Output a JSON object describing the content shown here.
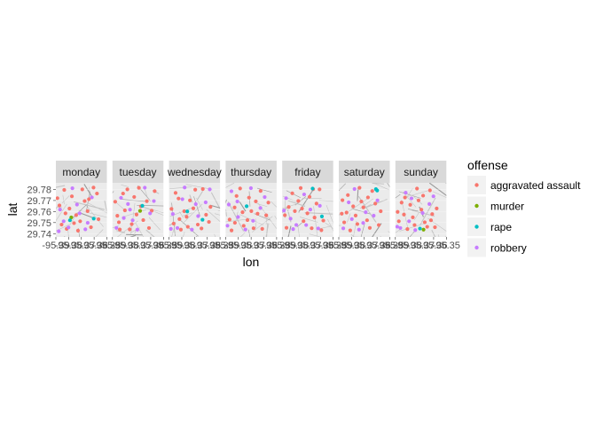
{
  "chart_data": {
    "type": "scatter",
    "facet_by": "day",
    "panels": [
      "monday",
      "tuesday",
      "wednesday",
      "thursday",
      "friday",
      "saturday",
      "sunday"
    ],
    "xlabel": "lon",
    "ylabel": "lat",
    "xlim": [
      -95.39,
      -95.34
    ],
    "ylim": [
      29.737,
      29.786
    ],
    "x_tick_labels": [
      "-95.39",
      "-95.38",
      "-95.37",
      "-95.36",
      "-95.35"
    ],
    "y_ticks": [
      29.74,
      29.75,
      29.76,
      29.77,
      29.78
    ],
    "y_tick_labels": [
      "29.74",
      "29.75",
      "29.76",
      "29.77",
      "29.78"
    ],
    "legend": {
      "title": "offense",
      "position": "right",
      "entries": [
        "aggravated assault",
        "murder",
        "rape",
        "robbery"
      ]
    },
    "colors": {
      "aggravated assault": "#F8766D",
      "murder": "#7CAE00",
      "rape": "#00BFC4",
      "robbery": "#C77CFF",
      "panel_background": "#EBEBEB",
      "strip_background": "#D9D9D9"
    },
    "grid": true,
    "basemap": "street-map",
    "points_per_panel": [
      [
        [
          -95.3818,
          29.7796,
          "aggravated assault"
        ],
        [
          -95.3865,
          29.7655,
          "aggravated assault"
        ],
        [
          -95.3743,
          29.7738,
          "aggravated assault"
        ],
        [
          -95.3662,
          29.7512,
          "aggravated assault"
        ],
        [
          -95.3589,
          29.7604,
          "aggravated assault"
        ],
        [
          -95.3794,
          29.7443,
          "aggravated assault"
        ],
        [
          -95.3531,
          29.7817,
          "aggravated assault"
        ],
        [
          -95.3701,
          29.7568,
          "aggravated assault"
        ],
        [
          -95.3844,
          29.7482,
          "aggravated assault"
        ],
        [
          -95.3618,
          29.7695,
          "aggravated assault"
        ],
        [
          -95.3482,
          29.7531,
          "aggravated assault"
        ],
        [
          -95.3767,
          29.7627,
          "aggravated assault"
        ],
        [
          -95.3556,
          29.7458,
          "aggravated assault"
        ],
        [
          -95.3885,
          29.7721,
          "aggravated assault"
        ],
        [
          -95.3641,
          29.7801,
          "aggravated assault"
        ],
        [
          -95.3722,
          29.7495,
          "aggravated assault"
        ],
        [
          -95.3497,
          29.7763,
          "aggravated assault"
        ],
        [
          -95.3806,
          29.7584,
          "aggravated assault"
        ],
        [
          -95.3576,
          29.7712,
          "aggravated assault"
        ],
        [
          -95.3683,
          29.7427,
          "aggravated assault"
        ],
        [
          -95.3749,
          29.7547,
          "murder"
        ],
        [
          -95.3529,
          29.7536,
          "rape"
        ],
        [
          -95.3762,
          29.7521,
          "rape"
        ],
        [
          -95.3859,
          29.7618,
          "robbery"
        ],
        [
          -95.3776,
          29.7456,
          "robbery"
        ],
        [
          -95.3693,
          29.7663,
          "robbery"
        ],
        [
          -95.3824,
          29.7512,
          "robbery"
        ],
        [
          -95.3611,
          29.7439,
          "robbery"
        ],
        [
          -95.3738,
          29.7811,
          "robbery"
        ],
        [
          -95.3547,
          29.7728,
          "robbery"
        ],
        [
          -95.3667,
          29.7584,
          "robbery"
        ],
        [
          -95.3872,
          29.7421,
          "robbery"
        ],
        [
          -95.3588,
          29.7498,
          "robbery"
        ]
      ],
      [
        [
          -95.3796,
          29.7763,
          "aggravated assault"
        ],
        [
          -95.3641,
          29.7815,
          "aggravated assault"
        ],
        [
          -95.3852,
          29.7562,
          "aggravated assault"
        ],
        [
          -95.3711,
          29.7486,
          "aggravated assault"
        ],
        [
          -95.3563,
          29.7694,
          "aggravated assault"
        ],
        [
          -95.3828,
          29.7437,
          "aggravated assault"
        ],
        [
          -95.3515,
          29.7608,
          "aggravated assault"
        ],
        [
          -95.3687,
          29.7732,
          "aggravated assault"
        ],
        [
          -95.3778,
          29.7611,
          "aggravated assault"
        ],
        [
          -95.3598,
          29.7523,
          "aggravated assault"
        ],
        [
          -95.3486,
          29.7785,
          "aggravated assault"
        ],
        [
          -95.3731,
          29.7438,
          "aggravated assault"
        ],
        [
          -95.3873,
          29.7689,
          "aggravated assault"
        ],
        [
          -95.3621,
          29.7647,
          "aggravated assault"
        ],
        [
          -95.3542,
          29.7451,
          "aggravated assault"
        ],
        [
          -95.3754,
          29.7801,
          "aggravated assault"
        ],
        [
          -95.3664,
          29.7573,
          "aggravated assault"
        ],
        [
          -95.3837,
          29.7503,
          "aggravated assault"
        ],
        [
          -95.3629,
          29.7606,
          "murder"
        ],
        [
          -95.3607,
          29.7652,
          "rape"
        ],
        [
          -95.3748,
          29.7668,
          "robbery"
        ],
        [
          -95.3861,
          29.7452,
          "robbery"
        ],
        [
          -95.3583,
          29.7816,
          "robbery"
        ],
        [
          -95.3702,
          29.7521,
          "robbery"
        ],
        [
          -95.3816,
          29.7724,
          "robbery"
        ],
        [
          -95.3531,
          29.7584,
          "robbery"
        ],
        [
          -95.3656,
          29.7436,
          "robbery"
        ],
        [
          -95.3789,
          29.7542,
          "robbery"
        ],
        [
          -95.3494,
          29.7695,
          "robbery"
        ],
        [
          -95.3728,
          29.7617,
          "robbery"
        ]
      ],
      [
        [
          -95.3807,
          29.7718,
          "aggravated assault"
        ],
        [
          -95.3662,
          29.7629,
          "aggravated assault"
        ],
        [
          -95.3855,
          29.7491,
          "aggravated assault"
        ],
        [
          -95.3569,
          29.7804,
          "aggravated assault"
        ],
        [
          -95.3728,
          29.7553,
          "aggravated assault"
        ],
        [
          -95.3494,
          29.7642,
          "aggravated assault"
        ],
        [
          -95.3784,
          29.7436,
          "aggravated assault"
        ],
        [
          -95.3618,
          29.7482,
          "aggravated assault"
        ],
        [
          -95.3836,
          29.7769,
          "aggravated assault"
        ],
        [
          -95.3537,
          29.7571,
          "aggravated assault"
        ],
        [
          -95.3695,
          29.7701,
          "aggravated assault"
        ],
        [
          -95.3751,
          29.7603,
          "aggravated assault"
        ],
        [
          -95.3582,
          29.7447,
          "aggravated assault"
        ],
        [
          -95.3876,
          29.7624,
          "aggravated assault"
        ],
        [
          -95.3643,
          29.7798,
          "aggravated assault"
        ],
        [
          -95.3509,
          29.7506,
          "aggravated assault"
        ],
        [
          -95.3716,
          29.7462,
          "aggravated assault"
        ],
        [
          -95.3798,
          29.7532,
          "aggravated assault"
        ],
        [
          -95.3721,
          29.7601,
          "rape"
        ],
        [
          -95.3572,
          29.7526,
          "rape"
        ],
        [
          -95.3747,
          29.7818,
          "robbery"
        ],
        [
          -95.3863,
          29.7578,
          "robbery"
        ],
        [
          -95.3615,
          29.7559,
          "robbery"
        ],
        [
          -95.3818,
          29.7451,
          "robbery"
        ],
        [
          -95.3676,
          29.7436,
          "robbery"
        ],
        [
          -95.3541,
          29.7683,
          "robbery"
        ],
        [
          -95.3769,
          29.7712,
          "robbery"
        ],
        [
          -95.3638,
          29.7667,
          "robbery"
        ],
        [
          -95.3882,
          29.7443,
          "robbery"
        ],
        [
          -95.3501,
          29.7801,
          "robbery"
        ]
      ],
      [
        [
          -95.3793,
          29.7741,
          "aggravated assault"
        ],
        [
          -95.3648,
          29.7604,
          "aggravated assault"
        ],
        [
          -95.3861,
          29.7528,
          "aggravated assault"
        ],
        [
          -95.3557,
          29.7787,
          "aggravated assault"
        ],
        [
          -95.3723,
          29.7471,
          "aggravated assault"
        ],
        [
          -95.3502,
          29.7566,
          "aggravated assault"
        ],
        [
          -95.3812,
          29.7637,
          "aggravated assault"
        ],
        [
          -95.3604,
          29.7692,
          "aggravated assault"
        ],
        [
          -95.3686,
          29.7523,
          "aggravated assault"
        ],
        [
          -95.3758,
          29.7809,
          "aggravated assault"
        ],
        [
          -95.3541,
          29.7443,
          "aggravated assault"
        ],
        [
          -95.3842,
          29.7429,
          "aggravated assault"
        ],
        [
          -95.3671,
          29.7726,
          "aggravated assault"
        ],
        [
          -95.3587,
          29.7581,
          "aggravated assault"
        ],
        [
          -95.3481,
          29.7681,
          "aggravated assault"
        ],
        [
          -95.3734,
          29.7594,
          "aggravated assault"
        ],
        [
          -95.3809,
          29.7498,
          "aggravated assault"
        ],
        [
          -95.3626,
          29.7449,
          "aggravated assault"
        ],
        [
          -95.3694,
          29.7648,
          "rape"
        ],
        [
          -95.3869,
          29.7663,
          "robbery"
        ],
        [
          -95.3778,
          29.7551,
          "robbery"
        ],
        [
          -95.3631,
          29.7516,
          "robbery"
        ],
        [
          -95.3843,
          29.7784,
          "robbery"
        ],
        [
          -95.3559,
          29.7632,
          "robbery"
        ],
        [
          -95.3706,
          29.7437,
          "robbery"
        ],
        [
          -95.3785,
          29.7691,
          "robbery"
        ],
        [
          -95.3517,
          29.7731,
          "robbery"
        ],
        [
          -95.3652,
          29.7812,
          "robbery"
        ],
        [
          -95.3882,
          29.7472,
          "robbery"
        ]
      ],
      [
        [
          -95.3801,
          29.7765,
          "aggravated assault"
        ],
        [
          -95.3653,
          29.7584,
          "aggravated assault"
        ],
        [
          -95.3858,
          29.7453,
          "aggravated assault"
        ],
        [
          -95.3564,
          29.7672,
          "aggravated assault"
        ],
        [
          -95.3719,
          29.7813,
          "aggravated assault"
        ],
        [
          -95.3497,
          29.7518,
          "aggravated assault"
        ],
        [
          -95.3776,
          29.7604,
          "aggravated assault"
        ],
        [
          -95.3611,
          29.7449,
          "aggravated assault"
        ],
        [
          -95.3836,
          29.7641,
          "aggravated assault"
        ],
        [
          -95.3534,
          29.7801,
          "aggravated assault"
        ],
        [
          -95.3691,
          29.7513,
          "aggravated assault"
        ],
        [
          -95.3742,
          29.7696,
          "aggravated assault"
        ],
        [
          -95.3583,
          29.7546,
          "aggravated assault"
        ],
        [
          -95.3874,
          29.7567,
          "aggravated assault"
        ],
        [
          -95.3632,
          29.7733,
          "aggravated assault"
        ],
        [
          -95.3516,
          29.7431,
          "aggravated assault"
        ],
        [
          -95.3706,
          29.7627,
          "aggravated assault"
        ],
        [
          -95.3597,
          29.7803,
          "aggravated assault"
        ],
        [
          -95.3602,
          29.7808,
          "rape"
        ],
        [
          -95.3511,
          29.7556,
          "rape"
        ],
        [
          -95.3762,
          29.7479,
          "robbery"
        ],
        [
          -95.3862,
          29.7721,
          "robbery"
        ],
        [
          -95.3624,
          29.7618,
          "robbery"
        ],
        [
          -95.3818,
          29.7536,
          "robbery"
        ],
        [
          -95.3547,
          29.7447,
          "robbery"
        ],
        [
          -95.3685,
          29.7755,
          "robbery"
        ],
        [
          -95.3793,
          29.7441,
          "robbery"
        ],
        [
          -95.3531,
          29.7652,
          "robbery"
        ],
        [
          -95.3665,
          29.7478,
          "robbery"
        ],
        [
          -95.3884,
          29.7609,
          "robbery"
        ]
      ],
      [
        [
          -95.3811,
          29.7749,
          "aggravated assault"
        ],
        [
          -95.3659,
          29.7638,
          "aggravated assault"
        ],
        [
          -95.3847,
          29.7502,
          "aggravated assault"
        ],
        [
          -95.3572,
          29.7786,
          "aggravated assault"
        ],
        [
          -95.3735,
          29.7564,
          "aggravated assault"
        ],
        [
          -95.3489,
          29.7603,
          "aggravated assault"
        ],
        [
          -95.3788,
          29.7429,
          "aggravated assault"
        ],
        [
          -95.3623,
          29.7521,
          "aggravated assault"
        ],
        [
          -95.3864,
          29.7703,
          "aggravated assault"
        ],
        [
          -95.3542,
          29.7672,
          "aggravated assault"
        ],
        [
          -95.3697,
          29.7815,
          "aggravated assault"
        ],
        [
          -95.3759,
          29.7647,
          "aggravated assault"
        ],
        [
          -95.3596,
          29.7452,
          "aggravated assault"
        ],
        [
          -95.3871,
          29.7581,
          "aggravated assault"
        ],
        [
          -95.3614,
          29.7728,
          "aggravated assault"
        ],
        [
          -95.3508,
          29.7478,
          "aggravated assault"
        ],
        [
          -95.3718,
          29.7487,
          "aggravated assault"
        ],
        [
          -95.3824,
          29.7591,
          "aggravated assault"
        ],
        [
          -95.3679,
          29.7691,
          "aggravated assault"
        ],
        [
          -95.3536,
          29.7803,
          "rape"
        ],
        [
          -95.3524,
          29.7791,
          "rape"
        ],
        [
          -95.3772,
          29.7532,
          "robbery"
        ],
        [
          -95.3856,
          29.7448,
          "robbery"
        ],
        [
          -95.3636,
          29.7594,
          "robbery"
        ],
        [
          -95.3803,
          29.7683,
          "robbery"
        ],
        [
          -95.3558,
          29.7563,
          "robbery"
        ],
        [
          -95.3702,
          29.7436,
          "robbery"
        ],
        [
          -95.3746,
          29.7804,
          "robbery"
        ],
        [
          -95.3521,
          29.7701,
          "robbery"
        ],
        [
          -95.3661,
          29.7497,
          "robbery"
        ]
      ],
      [
        [
          -95.3806,
          29.7727,
          "aggravated assault"
        ],
        [
          -95.3645,
          29.7617,
          "aggravated assault"
        ],
        [
          -95.3866,
          29.7512,
          "aggravated assault"
        ],
        [
          -95.3561,
          29.7792,
          "aggravated assault"
        ],
        [
          -95.3729,
          29.7548,
          "aggravated assault"
        ],
        [
          -95.3495,
          29.7628,
          "aggravated assault"
        ],
        [
          -95.3782,
          29.7441,
          "aggravated assault"
        ],
        [
          -95.3612,
          29.7503,
          "aggravated assault"
        ],
        [
          -95.3839,
          29.7681,
          "aggravated assault"
        ],
        [
          -95.3539,
          29.7577,
          "aggravated assault"
        ],
        [
          -95.3688,
          29.7808,
          "aggravated assault"
        ],
        [
          -95.3754,
          29.7661,
          "aggravated assault"
        ],
        [
          -95.3588,
          29.7462,
          "aggravated assault"
        ],
        [
          -95.3878,
          29.7597,
          "aggravated assault"
        ],
        [
          -95.3628,
          29.7744,
          "aggravated assault"
        ],
        [
          -95.3512,
          29.7458,
          "aggravated assault"
        ],
        [
          -95.3712,
          29.7478,
          "aggravated assault"
        ],
        [
          -95.3816,
          29.7573,
          "aggravated assault"
        ],
        [
          -95.3673,
          29.7701,
          "aggravated assault"
        ],
        [
          -95.3551,
          29.7521,
          "aggravated assault"
        ],
        [
          -95.3624,
          29.7436,
          "murder"
        ],
        [
          -95.3659,
          29.7446,
          "rape"
        ],
        [
          -95.3766,
          29.7512,
          "robbery"
        ],
        [
          -95.3851,
          29.7451,
          "robbery"
        ],
        [
          -95.3633,
          29.7587,
          "robbery"
        ],
        [
          -95.3799,
          29.7771,
          "robbery"
        ],
        [
          -95.3567,
          29.7668,
          "robbery"
        ],
        [
          -95.3705,
          29.7432,
          "robbery"
        ],
        [
          -95.3742,
          29.7719,
          "robbery"
        ],
        [
          -95.3527,
          29.7738,
          "robbery"
        ],
        [
          -95.3882,
          29.7463,
          "robbery"
        ]
      ]
    ]
  }
}
